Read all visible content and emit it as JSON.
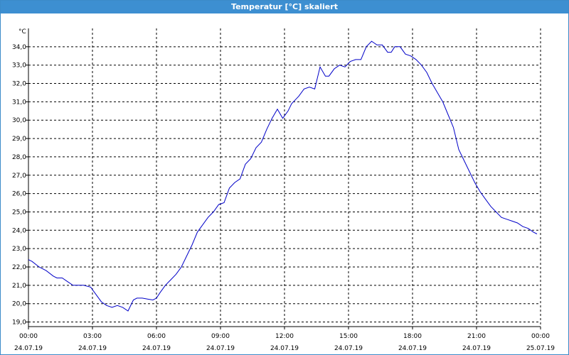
{
  "window": {
    "title": "Temperatur [°C] skaliert"
  },
  "colors": {
    "title_bar": "#3d8fd1",
    "line": "#0000c8",
    "grid": "#000000",
    "background": "#ffffff"
  },
  "chart_data": {
    "type": "line",
    "title": "Temperatur [°C] skaliert",
    "ylabel": "°C",
    "xlabel": "",
    "ylim": [
      18.75,
      35.0
    ],
    "xlim": [
      "2019-07-24T00:00",
      "2019-07-25T00:00"
    ],
    "grid": true,
    "legend": "none",
    "y_ticks": [
      "19,0",
      "20,0",
      "21,0",
      "22,0",
      "23,0",
      "24,0",
      "25,0",
      "26,0",
      "27,0",
      "28,0",
      "29,0",
      "30,0",
      "31,0",
      "32,0",
      "33,0",
      "34,0"
    ],
    "x_ticks": [
      {
        "time": "00:00",
        "date": "24.07.19"
      },
      {
        "time": "03:00",
        "date": "24.07.19"
      },
      {
        "time": "06:00",
        "date": "24.07.19"
      },
      {
        "time": "09:00",
        "date": "24.07.19"
      },
      {
        "time": "12:00",
        "date": "24.07.19"
      },
      {
        "time": "15:00",
        "date": "24.07.19"
      },
      {
        "time": "18:00",
        "date": "24.07.19"
      },
      {
        "time": "21:00",
        "date": "24.07.19"
      },
      {
        "time": "00:00",
        "date": "25.07.19"
      }
    ],
    "series": [
      {
        "x": [
          "00:00",
          "00:10",
          "00:30",
          "00:50",
          "01:10",
          "01:20",
          "01:35",
          "01:50",
          "02:05",
          "02:20",
          "02:35",
          "02:55",
          "03:10",
          "03:25",
          "03:40",
          "03:55",
          "04:10",
          "04:25",
          "04:40",
          "04:55",
          "05:05",
          "05:20",
          "05:35",
          "05:50",
          "06:00",
          "06:10",
          "06:25",
          "06:40",
          "06:55",
          "07:10",
          "07:25",
          "07:40",
          "07:55",
          "08:10",
          "08:25",
          "08:40",
          "08:55",
          "09:10",
          "09:25",
          "09:40",
          "09:55",
          "10:10",
          "10:25",
          "10:40",
          "10:55",
          "11:10",
          "11:25",
          "11:40",
          "11:55",
          "12:10",
          "12:20",
          "12:30",
          "12:40",
          "12:55",
          "13:10",
          "13:25",
          "13:40",
          "13:55",
          "14:05",
          "14:20",
          "14:35",
          "14:50",
          "15:05",
          "15:20",
          "15:35",
          "15:50",
          "16:05",
          "16:20",
          "16:35",
          "16:50",
          "17:00",
          "17:10",
          "17:25",
          "17:40",
          "17:55",
          "18:10",
          "18:25",
          "18:40",
          "18:55",
          "19:10",
          "19:25",
          "19:40",
          "19:55",
          "20:10",
          "20:25",
          "20:40",
          "20:55",
          "21:10",
          "21:25",
          "21:40",
          "21:55",
          "22:10",
          "22:25",
          "22:40",
          "22:55",
          "23:10",
          "23:25",
          "23:40",
          "23:50"
        ],
        "y": [
          22.4,
          22.3,
          22.0,
          21.8,
          21.5,
          21.4,
          21.4,
          21.2,
          21.0,
          21.0,
          21.0,
          20.9,
          20.5,
          20.1,
          19.9,
          19.8,
          19.9,
          19.8,
          19.6,
          20.2,
          20.3,
          20.3,
          20.25,
          20.2,
          20.3,
          20.6,
          21.0,
          21.3,
          21.6,
          22.0,
          22.6,
          23.2,
          23.9,
          24.3,
          24.7,
          25.0,
          25.4,
          25.5,
          26.3,
          26.6,
          26.8,
          27.6,
          27.9,
          28.5,
          28.8,
          29.5,
          30.1,
          30.6,
          30.1,
          30.5,
          30.9,
          31.1,
          31.3,
          31.7,
          31.8,
          31.7,
          32.9,
          32.4,
          32.4,
          32.8,
          33.0,
          32.9,
          33.2,
          33.3,
          33.3,
          34.0,
          34.3,
          34.1,
          34.1,
          33.7,
          33.7,
          34.0,
          34.0,
          33.6,
          33.5,
          33.3,
          33.0,
          32.6,
          32.0,
          31.5,
          31.0,
          30.3,
          29.6,
          28.4,
          27.8,
          27.2,
          26.6,
          26.1,
          25.7,
          25.3,
          25.0,
          24.7,
          24.6,
          24.5,
          24.4,
          24.2,
          24.1,
          23.9,
          23.8
        ],
        "note_unused": ""
      }
    ]
  }
}
